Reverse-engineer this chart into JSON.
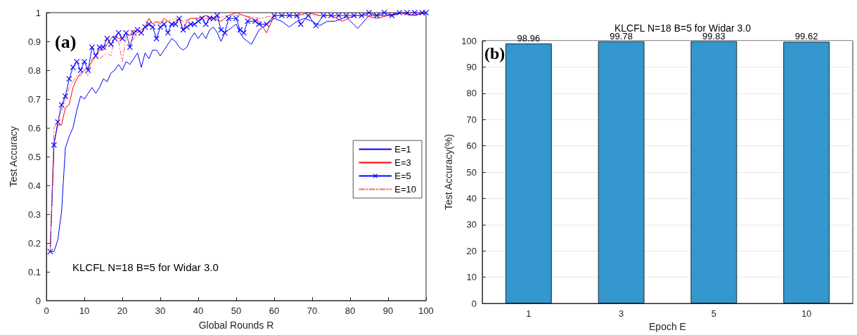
{
  "chart_data": [
    {
      "type": "line",
      "xlabel": "Global Rounds R",
      "ylabel": "Test Accuracy",
      "xlim": [
        0,
        100
      ],
      "ylim": [
        0,
        1
      ],
      "xticks": [
        0,
        10,
        20,
        30,
        40,
        50,
        60,
        70,
        80,
        90,
        100
      ],
      "yticks": [
        0,
        0.1,
        0.2,
        0.3,
        0.4,
        0.5,
        0.6,
        0.7,
        0.8,
        0.9,
        1
      ],
      "grid": false,
      "legend": "right",
      "annotations": [
        "(a)",
        "KLCFL N=18 B=5 for Widar 3.0"
      ],
      "series": [
        {
          "name": "E=1",
          "color": "#0000ff",
          "marker": "none",
          "line_style": "solid",
          "x": [
            1,
            2,
            3,
            4,
            5,
            6,
            7,
            8,
            9,
            10,
            11,
            12,
            13,
            14,
            15,
            16,
            17,
            18,
            19,
            20,
            21,
            22,
            23,
            24,
            25,
            26,
            27,
            28,
            29,
            30,
            31,
            32,
            33,
            34,
            35,
            36,
            37,
            38,
            39,
            40,
            41,
            42,
            43,
            44,
            45,
            46,
            47,
            48,
            49,
            50,
            51,
            52,
            53,
            54,
            56,
            58,
            60,
            62,
            64,
            66,
            68,
            70,
            72,
            74,
            76,
            79,
            82,
            85,
            88,
            91,
            94,
            97,
            100
          ],
          "values": [
            0.17,
            0.17,
            0.21,
            0.31,
            0.53,
            0.57,
            0.6,
            0.66,
            0.71,
            0.7,
            0.72,
            0.74,
            0.72,
            0.74,
            0.77,
            0.76,
            0.79,
            0.8,
            0.82,
            0.8,
            0.83,
            0.82,
            0.84,
            0.86,
            0.81,
            0.86,
            0.84,
            0.87,
            0.87,
            0.85,
            0.87,
            0.89,
            0.91,
            0.9,
            0.88,
            0.87,
            0.88,
            0.91,
            0.93,
            0.91,
            0.93,
            0.91,
            0.94,
            0.95,
            0.93,
            0.9,
            0.93,
            0.94,
            0.95,
            0.96,
            0.93,
            0.91,
            0.9,
            0.89,
            0.94,
            0.96,
            0.98,
            0.97,
            0.95,
            0.97,
            0.98,
            0.97,
            0.955,
            0.97,
            0.97,
            0.985,
            0.945,
            0.99,
            0.99,
            0.99,
            1,
            0.99,
            1
          ]
        },
        {
          "name": "E=3",
          "color": "#ff0000",
          "marker": "none",
          "line_style": "solid",
          "x": [
            1,
            2,
            3,
            4,
            5,
            6,
            7,
            8,
            9,
            10,
            11,
            12,
            13,
            14,
            15,
            16,
            17,
            18,
            19,
            20,
            21,
            22,
            23,
            24,
            25,
            26,
            27,
            28,
            29,
            30,
            31,
            32,
            33,
            34,
            35,
            36,
            37,
            38,
            39,
            40,
            42,
            44,
            46,
            48,
            50,
            52,
            54,
            56,
            58,
            60,
            63,
            66,
            69,
            72,
            75,
            78,
            81,
            84,
            87,
            90,
            93,
            96,
            100
          ],
          "values": [
            0.17,
            0.55,
            0.61,
            0.61,
            0.67,
            0.68,
            0.74,
            0.77,
            0.79,
            0.8,
            0.81,
            0.83,
            0.85,
            0.87,
            0.87,
            0.89,
            0.91,
            0.92,
            0.91,
            0.91,
            0.93,
            0.92,
            0.94,
            0.93,
            0.94,
            0.95,
            0.98,
            0.96,
            0.97,
            0.96,
            0.98,
            0.97,
            0.96,
            0.97,
            0.98,
            0.94,
            0.97,
            0.98,
            0.98,
            0.98,
            0.99,
            0.98,
            0.97,
            0.99,
            1,
            0.99,
            0.98,
            0.97,
            0.93,
            0.99,
            0.99,
            0.99,
            1,
            0.99,
            0.99,
            0.97,
            0.99,
            0.99,
            0.98,
            0.99,
            1,
            0.99,
            1
          ]
        },
        {
          "name": "E=5",
          "color": "#0000ff",
          "marker": "cross",
          "line_style": "solid",
          "x": [
            1,
            2,
            3,
            4,
            5,
            6,
            7,
            8,
            9,
            10,
            11,
            12,
            13,
            14,
            15,
            16,
            17,
            18,
            19,
            20,
            21,
            22,
            23,
            24,
            25,
            26,
            27,
            28,
            29,
            30,
            31,
            32,
            33,
            34,
            35,
            36,
            37,
            38,
            39,
            40,
            41,
            42,
            43,
            44,
            45,
            46,
            47,
            48,
            50,
            51,
            52,
            53,
            55,
            56,
            58,
            60,
            62,
            64,
            66,
            67,
            69,
            71,
            73,
            75,
            77,
            79,
            81,
            83,
            85,
            87,
            89,
            91,
            93,
            95,
            97,
            99,
            100
          ],
          "values": [
            0.17,
            0.54,
            0.62,
            0.68,
            0.71,
            0.77,
            0.81,
            0.83,
            0.8,
            0.83,
            0.8,
            0.88,
            0.85,
            0.88,
            0.88,
            0.91,
            0.89,
            0.91,
            0.93,
            0.91,
            0.93,
            0.88,
            0.93,
            0.94,
            0.93,
            0.95,
            0.96,
            0.95,
            0.91,
            0.95,
            0.96,
            0.93,
            0.96,
            0.96,
            0.98,
            0.94,
            0.95,
            0.96,
            0.96,
            0.97,
            0.98,
            0.96,
            0.98,
            0.98,
            0.99,
            0.94,
            0.93,
            0.98,
            0.98,
            0.94,
            0.93,
            0.97,
            0.97,
            0.96,
            0.96,
            0.99,
            0.99,
            0.99,
            0.99,
            0.96,
            0.99,
            0.955,
            0.99,
            0.99,
            0.99,
            0.99,
            0.99,
            0.99,
            1,
            0.99,
            1,
            0.99,
            1,
            1,
            1,
            1,
            1
          ]
        },
        {
          "name": "E=10",
          "color": "#ff6666",
          "marker": "none",
          "line_style": "dashed",
          "x": [
            1,
            2,
            3,
            4,
            5,
            6,
            7,
            8,
            9,
            10,
            11,
            12,
            13,
            14,
            15,
            16,
            17,
            18,
            19,
            20,
            21,
            22,
            24,
            26,
            28,
            30,
            32,
            34,
            36,
            38,
            40,
            44,
            48,
            52,
            56,
            60,
            65,
            70,
            75,
            80,
            85,
            90,
            95,
            100
          ],
          "values": [
            0.17,
            0.6,
            0.62,
            0.66,
            0.7,
            0.74,
            0.76,
            0.78,
            0.78,
            0.8,
            0.78,
            0.84,
            0.84,
            0.84,
            0.85,
            0.86,
            0.85,
            0.92,
            0.9,
            0.83,
            0.92,
            0.89,
            0.93,
            0.95,
            0.96,
            0.97,
            0.97,
            0.98,
            0.97,
            0.98,
            0.98,
            0.98,
            0.99,
            0.99,
            0.98,
            0.99,
            0.99,
            0.99,
            0.99,
            0.99,
            0.99,
            1,
            1,
            1
          ]
        }
      ]
    },
    {
      "type": "bar",
      "title": "KLCFL N=18 B=5 for Widar 3.0",
      "xlabel": "Epoch E",
      "ylabel": "Test Accuracy(%)",
      "categories": [
        "1",
        "3",
        "5",
        "10"
      ],
      "values": [
        98.96,
        99.78,
        99.83,
        99.62
      ],
      "color": "#3497cd",
      "ylim": [
        0,
        100
      ],
      "yticks": [
        0,
        10,
        20,
        30,
        40,
        50,
        60,
        70,
        80,
        90,
        100
      ],
      "grid": "y",
      "data_labels": true,
      "annotations": [
        "(b)"
      ]
    }
  ]
}
